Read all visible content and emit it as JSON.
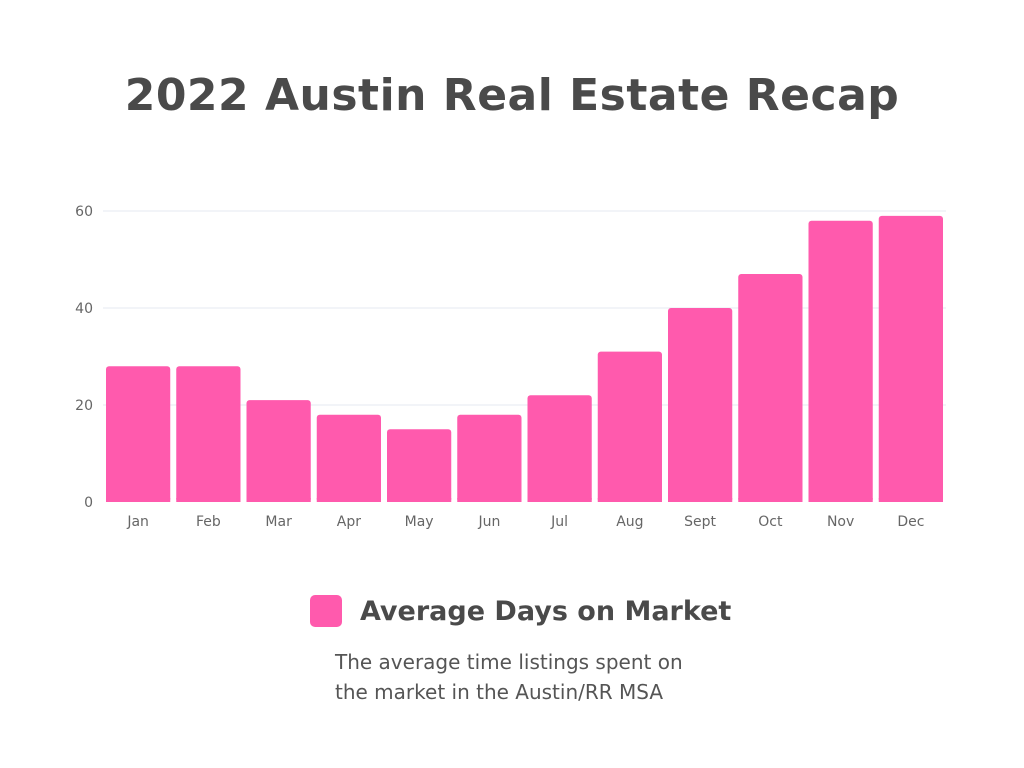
{
  "colors": {
    "bar": "#ff5aad",
    "grid": "#e6e9f2",
    "text": "#4a4a4a"
  },
  "chart_data": {
    "type": "bar",
    "title": "2022 Austin Real Estate Recap",
    "categories": [
      "Jan",
      "Feb",
      "Mar",
      "Apr",
      "May",
      "Jun",
      "Jul",
      "Aug",
      "Sept",
      "Oct",
      "Nov",
      "Dec"
    ],
    "series": [
      {
        "name": "Average Days on Market",
        "values": [
          28,
          28,
          21,
          18,
          15,
          18,
          22,
          31,
          40,
          47,
          58,
          59
        ]
      }
    ],
    "xlabel": "",
    "ylabel": "",
    "ylim": [
      0,
      60
    ],
    "yticks": [
      0,
      20,
      40,
      60
    ],
    "grid": true,
    "legend": {
      "placement": "bottom-center",
      "label": "Average Days on Market",
      "description": "The average time listings spent on the market in the Austin/RR MSA"
    }
  }
}
